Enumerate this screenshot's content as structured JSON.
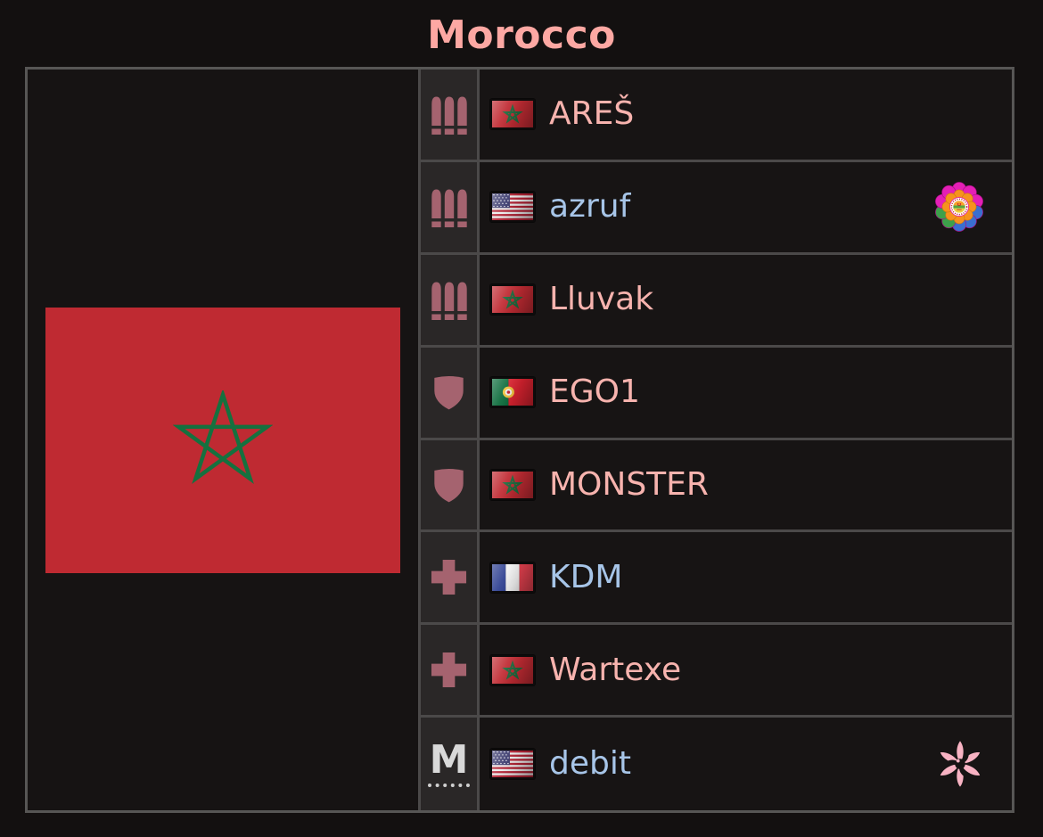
{
  "title": "Morocco",
  "colors": {
    "title": "#fda8a3",
    "pink": "#f7b3ae",
    "blue": "#a7c5e8",
    "rank_icon": "#a5636f",
    "flag_red": "#bf2a32",
    "flag_green": "#15713f",
    "panel_border": "#575655",
    "cell_border": "#4b4949",
    "icon_cell_bg": "#2a2727",
    "row_bg": "#171414",
    "page_bg": "#131010"
  },
  "country": {
    "name": "Morocco",
    "flag": "morocco"
  },
  "citizens": [
    {
      "rank_icon": "bullets-icon",
      "flag": "morocco",
      "name": "AREŠ",
      "name_color": "pink",
      "badge": null
    },
    {
      "rank_icon": "bullets-icon",
      "flag": "usa",
      "name": "azruf",
      "name_color": "blue",
      "badge": "sunflower-unit-badge"
    },
    {
      "rank_icon": "bullets-icon",
      "flag": "morocco",
      "name": "Lluvak",
      "name_color": "pink",
      "badge": null
    },
    {
      "rank_icon": "shield-icon",
      "flag": "portugal",
      "name": "EGO1",
      "name_color": "pink",
      "badge": null
    },
    {
      "rank_icon": "shield-icon",
      "flag": "morocco",
      "name": "MONSTER",
      "name_color": "pink",
      "badge": null
    },
    {
      "rank_icon": "cross-icon",
      "flag": "france",
      "name": "KDM",
      "name_color": "blue",
      "badge": null
    },
    {
      "rank_icon": "cross-icon",
      "flag": "morocco",
      "name": "Wartexe",
      "name_color": "pink",
      "badge": null
    },
    {
      "rank_icon": "m-rank-icon",
      "rank_label": "M",
      "flag": "usa",
      "name": "debit",
      "name_color": "blue",
      "badge": "pink-flower-badge"
    }
  ]
}
